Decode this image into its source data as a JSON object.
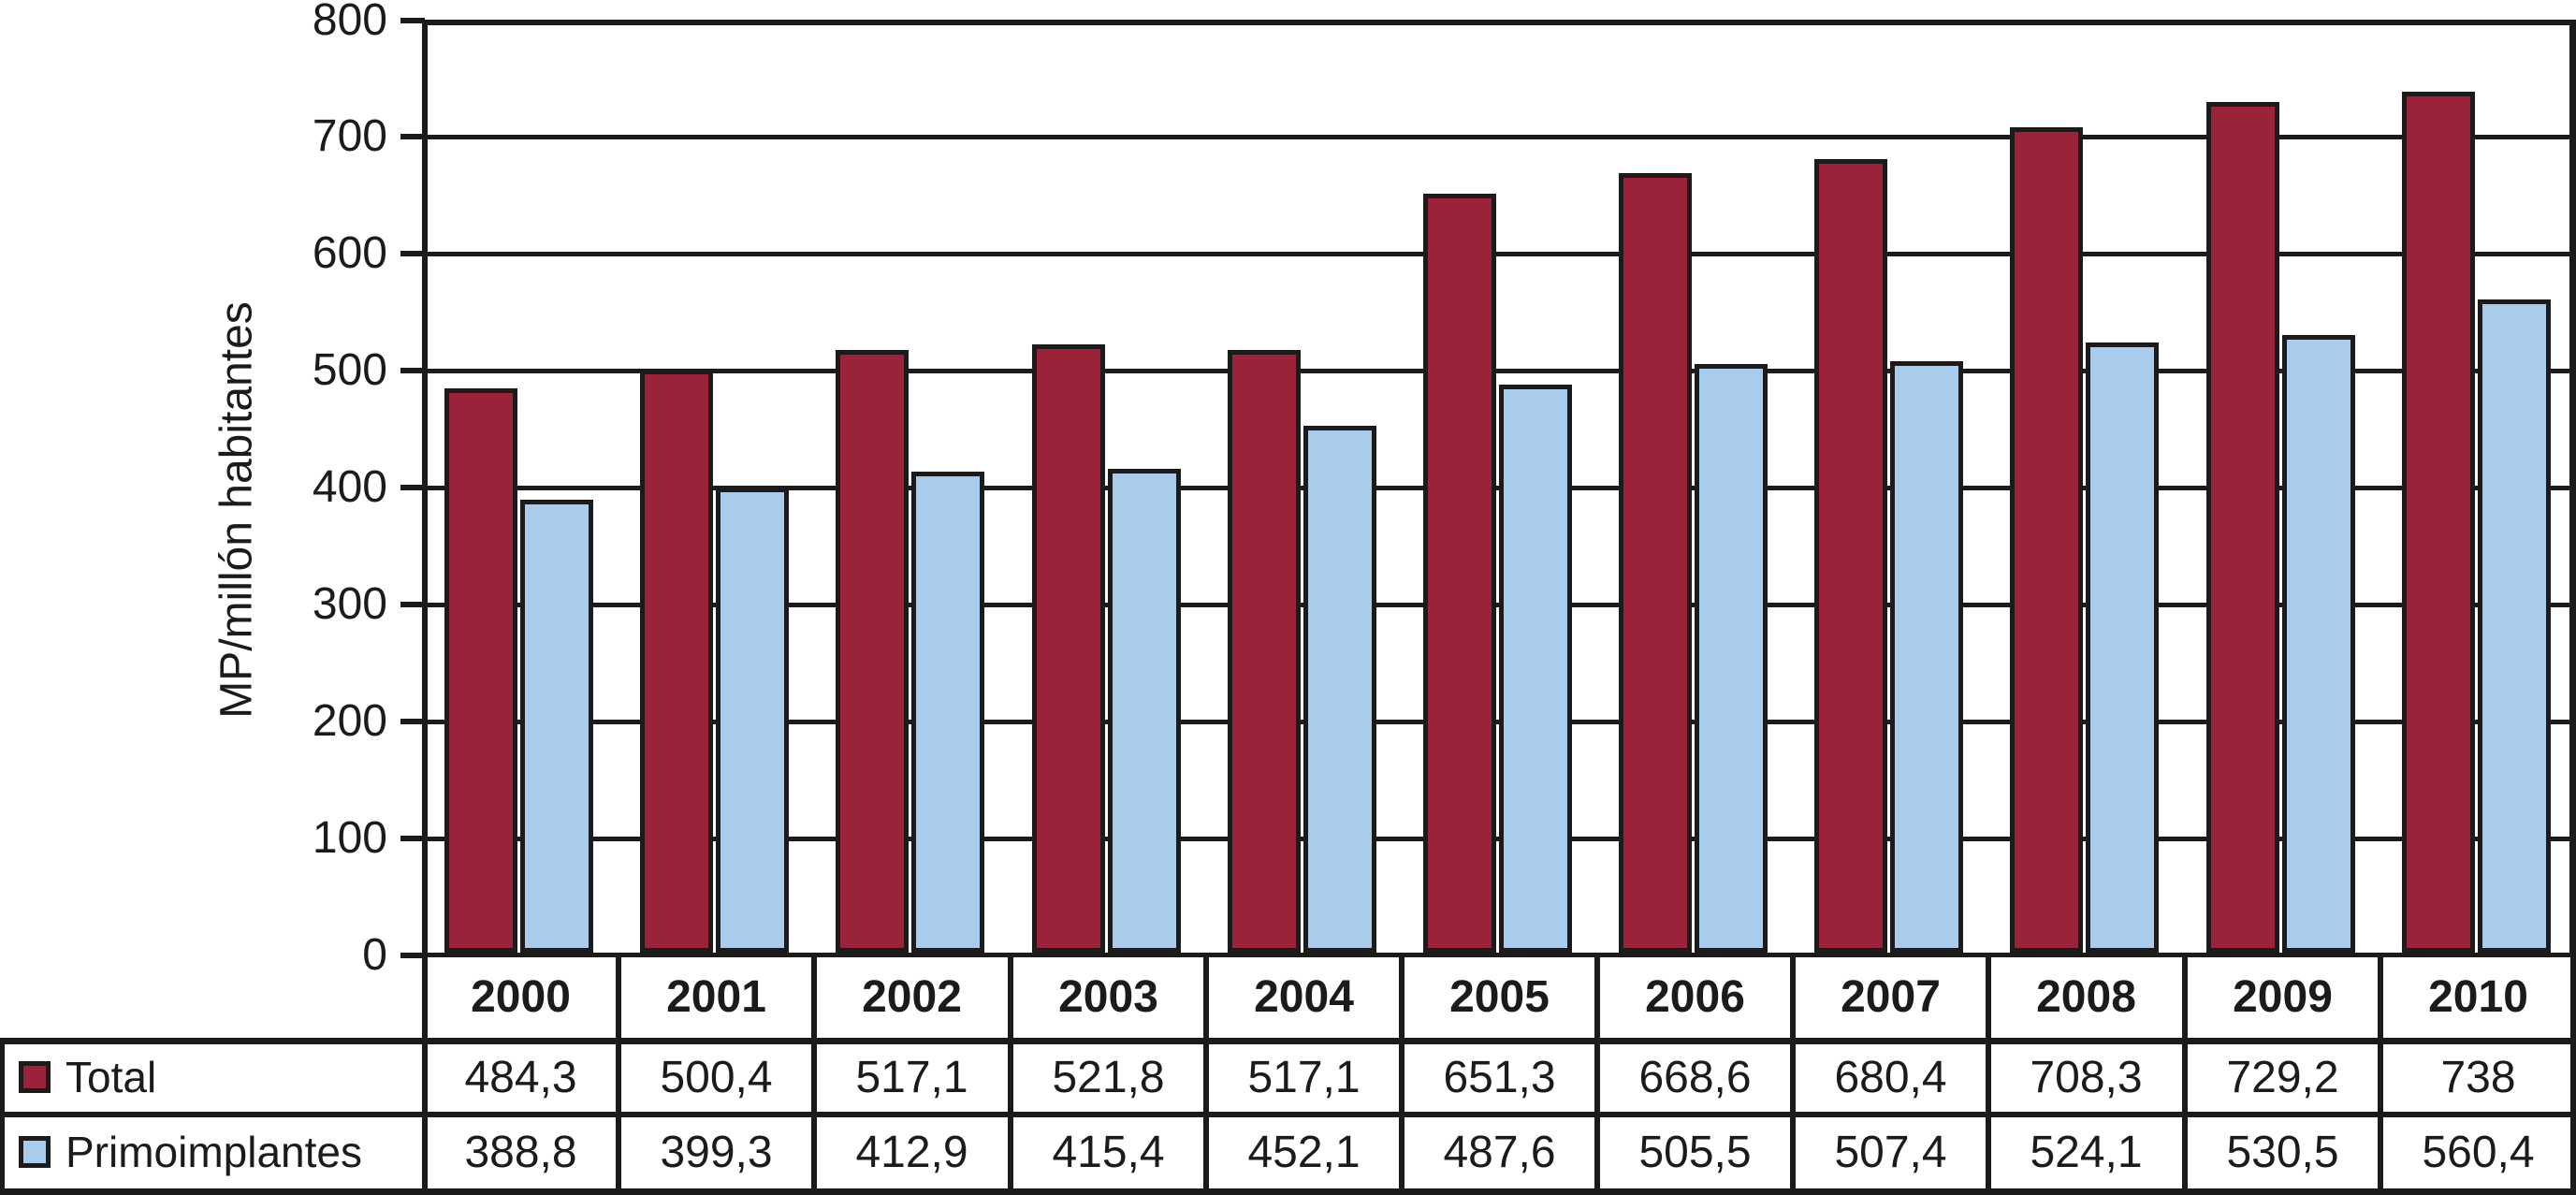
{
  "chart_data": {
    "type": "bar",
    "title": "",
    "xlabel": "",
    "ylabel": "MP/millón habitantes",
    "ylim": [
      0,
      800
    ],
    "ytick_step": 100,
    "yticks": [
      0,
      100,
      200,
      300,
      400,
      500,
      600,
      700,
      800
    ],
    "grid": "horizontal",
    "legend_position": "table-left",
    "axis_color": "#1d1a1b",
    "background_color": "#ffffff",
    "categories": [
      "2000",
      "2001",
      "2002",
      "2003",
      "2004",
      "2005",
      "2006",
      "2007",
      "2008",
      "2009",
      "2010"
    ],
    "series": [
      {
        "name": "Total",
        "color": "#9A2339",
        "values": [
          484.3,
          500.4,
          517.1,
          521.8,
          517.1,
          651.3,
          668.6,
          680.4,
          708.3,
          729.2,
          738
        ],
        "display": [
          "484,3",
          "500,4",
          "517,1",
          "521,8",
          "517,1",
          "651,3",
          "668,6",
          "680,4",
          "708,3",
          "729,2",
          "738"
        ]
      },
      {
        "name": "Primoimplantes",
        "color": "#A9CCEC",
        "values": [
          388.8,
          399.3,
          412.9,
          415.4,
          452.1,
          487.6,
          505.5,
          507.4,
          524.1,
          530.5,
          560.4
        ],
        "display": [
          "388,8",
          "399,3",
          "412,9",
          "415,4",
          "452,1",
          "487,6",
          "505,5",
          "507,4",
          "524,1",
          "530,5",
          "560,4"
        ]
      }
    ]
  }
}
